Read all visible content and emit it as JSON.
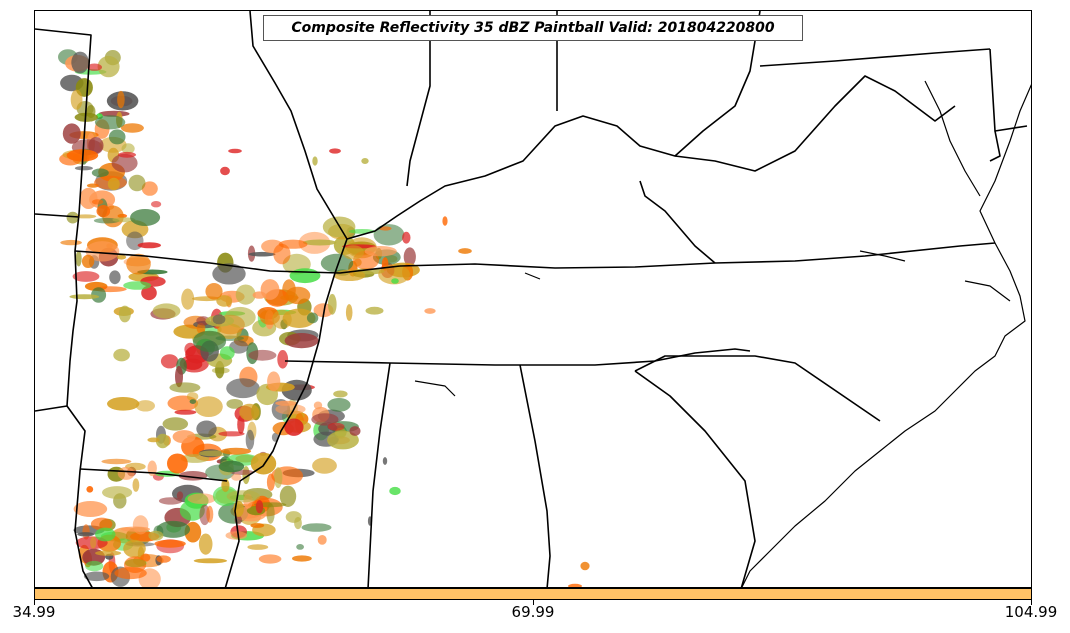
{
  "title": "Composite Reflectivity 35 dBZ Paintball Valid: 201804220800",
  "colorbar": {
    "color": "#ffc266",
    "tick_labels": [
      "34.99",
      "69.99",
      "104.99"
    ]
  },
  "colors": {
    "paintball": [
      "#ff6600",
      "#ee7700",
      "#ff9955",
      "#d4a020",
      "#8a8a10",
      "#dd2222",
      "#9b3a3a",
      "#3a7a3a",
      "#44dd44",
      "#555555",
      "#b8b040"
    ],
    "borders": "#000000"
  }
}
